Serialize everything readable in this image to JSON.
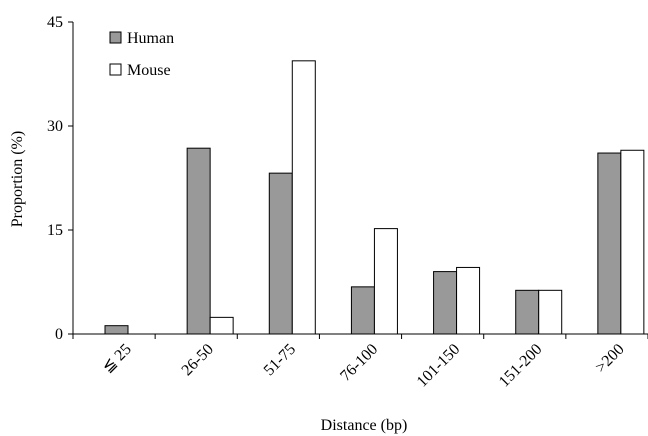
{
  "chart_data": {
    "type": "bar",
    "title": "",
    "xlabel": "Distance (bp)",
    "ylabel": "Proportion (%)",
    "ylim": [
      0,
      45
    ],
    "yticks": [
      0,
      15,
      30,
      45
    ],
    "grid": false,
    "legend_position": "top-left",
    "categories": [
      "≦ 25",
      "26-50",
      "51-75",
      "76-100",
      "101-150",
      "151-200",
      ">200"
    ],
    "series": [
      {
        "name": "Human",
        "color": "#999999",
        "values": [
          1.2,
          26.8,
          23.2,
          6.8,
          9.0,
          6.3,
          26.1
        ]
      },
      {
        "name": "Mouse",
        "color": "#ffffff",
        "values": [
          0,
          2.4,
          39.4,
          15.2,
          9.6,
          6.3,
          26.5
        ]
      }
    ]
  }
}
